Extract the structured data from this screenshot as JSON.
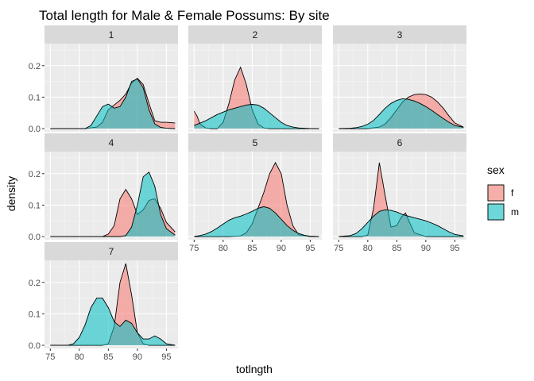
{
  "chart_data": {
    "type": "area",
    "title": "Total length for Male & Female Possums: By site",
    "xlabel": "totlngth",
    "ylabel": "density",
    "xlim": [
      74,
      97
    ],
    "ylim": [
      -0.01,
      0.27
    ],
    "x_ticks": [
      75,
      80,
      85,
      90,
      95
    ],
    "y_ticks": [
      0.0,
      0.1,
      0.2
    ],
    "y_tick_labels": [
      "0.0",
      "0.1",
      "0.2"
    ],
    "grid": true,
    "legend": {
      "title": "sex",
      "position": "right",
      "entries": [
        {
          "label": "f",
          "color": "#F8766D"
        },
        {
          "label": "m",
          "color": "#00BFC4"
        }
      ]
    },
    "facets": [
      {
        "label": "1",
        "series": [
          {
            "name": "f",
            "x": [
              75,
              81,
              83,
              84,
              85,
              86,
              87,
              88,
              89,
              90,
              91,
              92,
              93,
              94,
              95,
              96.5
            ],
            "y": [
              0,
              0,
              0.005,
              0.02,
              0.06,
              0.075,
              0.09,
              0.11,
              0.145,
              0.16,
              0.14,
              0.08,
              0.025,
              0.02,
              0.02,
              0.018
            ]
          },
          {
            "name": "m",
            "x": [
              75,
              81,
              82,
              83,
              84,
              85,
              86,
              87,
              88,
              89,
              90,
              91,
              92,
              93,
              94,
              95,
              96.5
            ],
            "y": [
              0,
              0,
              0.01,
              0.04,
              0.07,
              0.078,
              0.065,
              0.07,
              0.1,
              0.15,
              0.158,
              0.13,
              0.06,
              0.015,
              0.004,
              0.001,
              0
            ]
          }
        ]
      },
      {
        "label": "2",
        "series": [
          {
            "name": "f",
            "x": [
              75,
              75.5,
              76,
              77,
              78,
              79,
              80,
              81,
              82,
              83,
              84,
              85,
              86,
              87,
              88,
              89,
              90,
              91,
              92,
              93,
              94,
              95,
              96.5
            ],
            "y": [
              0.055,
              0.04,
              0.015,
              0.002,
              0,
              0,
              0.02,
              0.08,
              0.155,
              0.195,
              0.14,
              0.06,
              0.015,
              0.002,
              0,
              0,
              0,
              0,
              0,
              0,
              0,
              0,
              0
            ]
          },
          {
            "name": "m",
            "x": [
              75,
              77,
              79,
              81,
              83,
              84,
              85,
              86,
              87,
              88,
              89,
              90,
              91,
              92,
              93,
              94,
              95,
              96.5
            ],
            "y": [
              0.01,
              0.025,
              0.045,
              0.06,
              0.07,
              0.075,
              0.077,
              0.075,
              0.065,
              0.05,
              0.035,
              0.02,
              0.01,
              0.005,
              0.002,
              0.001,
              0,
              0
            ]
          }
        ]
      },
      {
        "label": "3",
        "series": [
          {
            "name": "f",
            "x": [
              75,
              80,
              82,
              83,
              84,
              85,
              86,
              87,
              88,
              89,
              90,
              91,
              92,
              93,
              94,
              95,
              96.5
            ],
            "y": [
              0,
              0,
              0.005,
              0.015,
              0.035,
              0.06,
              0.085,
              0.1,
              0.108,
              0.11,
              0.108,
              0.1,
              0.085,
              0.065,
              0.04,
              0.018,
              0.005
            ]
          },
          {
            "name": "m",
            "x": [
              75,
              77,
              78,
              79,
              80,
              81,
              82,
              83,
              84,
              85,
              86,
              87,
              88,
              89,
              90,
              91,
              92,
              93,
              94,
              95,
              96.5
            ],
            "y": [
              0,
              0.001,
              0.003,
              0.007,
              0.014,
              0.026,
              0.045,
              0.065,
              0.08,
              0.09,
              0.095,
              0.093,
              0.088,
              0.08,
              0.07,
              0.058,
              0.045,
              0.032,
              0.02,
              0.01,
              0.004
            ]
          }
        ]
      },
      {
        "label": "4",
        "series": [
          {
            "name": "f",
            "x": [
              75,
              84,
              85,
              86,
              87,
              88,
              89,
              90,
              91,
              92,
              93,
              94,
              95,
              96.5
            ],
            "y": [
              0,
              0,
              0.008,
              0.035,
              0.12,
              0.15,
              0.12,
              0.07,
              0.085,
              0.115,
              0.12,
              0.09,
              0.045,
              0.015
            ]
          },
          {
            "name": "m",
            "x": [
              75,
              87,
              88,
              89,
              90,
              91,
              92,
              93,
              94,
              95,
              96.5
            ],
            "y": [
              0,
              0,
              0.003,
              0.03,
              0.1,
              0.19,
              0.205,
              0.16,
              0.07,
              0.025,
              0.005
            ]
          }
        ]
      },
      {
        "label": "5",
        "series": [
          {
            "name": "f",
            "x": [
              75,
              81,
              83,
              84,
              85,
              86,
              87,
              88,
              89,
              90,
              91,
              92,
              93,
              95,
              96.5
            ],
            "y": [
              0,
              0,
              0.002,
              0.012,
              0.04,
              0.09,
              0.14,
              0.2,
              0.235,
              0.2,
              0.1,
              0.035,
              0.006,
              0,
              0
            ]
          },
          {
            "name": "m",
            "x": [
              75,
              76,
              77,
              78,
              79,
              80,
              81,
              82,
              83,
              84,
              85,
              86,
              87,
              88,
              89,
              90,
              91,
              92,
              93,
              94,
              95,
              96.5
            ],
            "y": [
              0,
              0.003,
              0.008,
              0.016,
              0.027,
              0.04,
              0.052,
              0.06,
              0.065,
              0.072,
              0.08,
              0.09,
              0.095,
              0.09,
              0.075,
              0.055,
              0.035,
              0.02,
              0.01,
              0.004,
              0.001,
              0
            ]
          }
        ]
      },
      {
        "label": "6",
        "series": [
          {
            "name": "f",
            "x": [
              75,
              79,
              80,
              81,
              82,
              83,
              84,
              85,
              85.7,
              86.5,
              87.2,
              88,
              90,
              92,
              96.5
            ],
            "y": [
              0,
              0,
              0.005,
              0.09,
              0.235,
              0.13,
              0.03,
              0.035,
              0.06,
              0.075,
              0.045,
              0.012,
              0,
              0,
              0
            ]
          },
          {
            "name": "m",
            "x": [
              75,
              77,
              78,
              79,
              80,
              81,
              82,
              83,
              84,
              85,
              86,
              87,
              88,
              89,
              90,
              91,
              92,
              93,
              94,
              95,
              96.5
            ],
            "y": [
              0,
              0.003,
              0.01,
              0.025,
              0.045,
              0.065,
              0.08,
              0.085,
              0.083,
              0.078,
              0.07,
              0.065,
              0.06,
              0.055,
              0.05,
              0.043,
              0.035,
              0.025,
              0.015,
              0.007,
              0.002
            ]
          }
        ]
      },
      {
        "label": "7",
        "series": [
          {
            "name": "f",
            "x": [
              75,
              84,
              85,
              86,
              87,
              88,
              89,
              90,
              91,
              92,
              93,
              94,
              95,
              96.5
            ],
            "y": [
              0,
              0,
              0.005,
              0.06,
              0.2,
              0.26,
              0.16,
              0.04,
              0.005,
              0,
              0,
              0,
              0,
              0
            ]
          },
          {
            "name": "m",
            "x": [
              75,
              78,
              79,
              80,
              81,
              82,
              83,
              84,
              85,
              86,
              87,
              88,
              89,
              90,
              91,
              92,
              93,
              94,
              95,
              96.5
            ],
            "y": [
              0,
              0,
              0.005,
              0.025,
              0.065,
              0.12,
              0.15,
              0.15,
              0.12,
              0.075,
              0.06,
              0.08,
              0.07,
              0.04,
              0.02,
              0.02,
              0.03,
              0.02,
              0.005,
              0
            ]
          }
        ]
      }
    ]
  }
}
